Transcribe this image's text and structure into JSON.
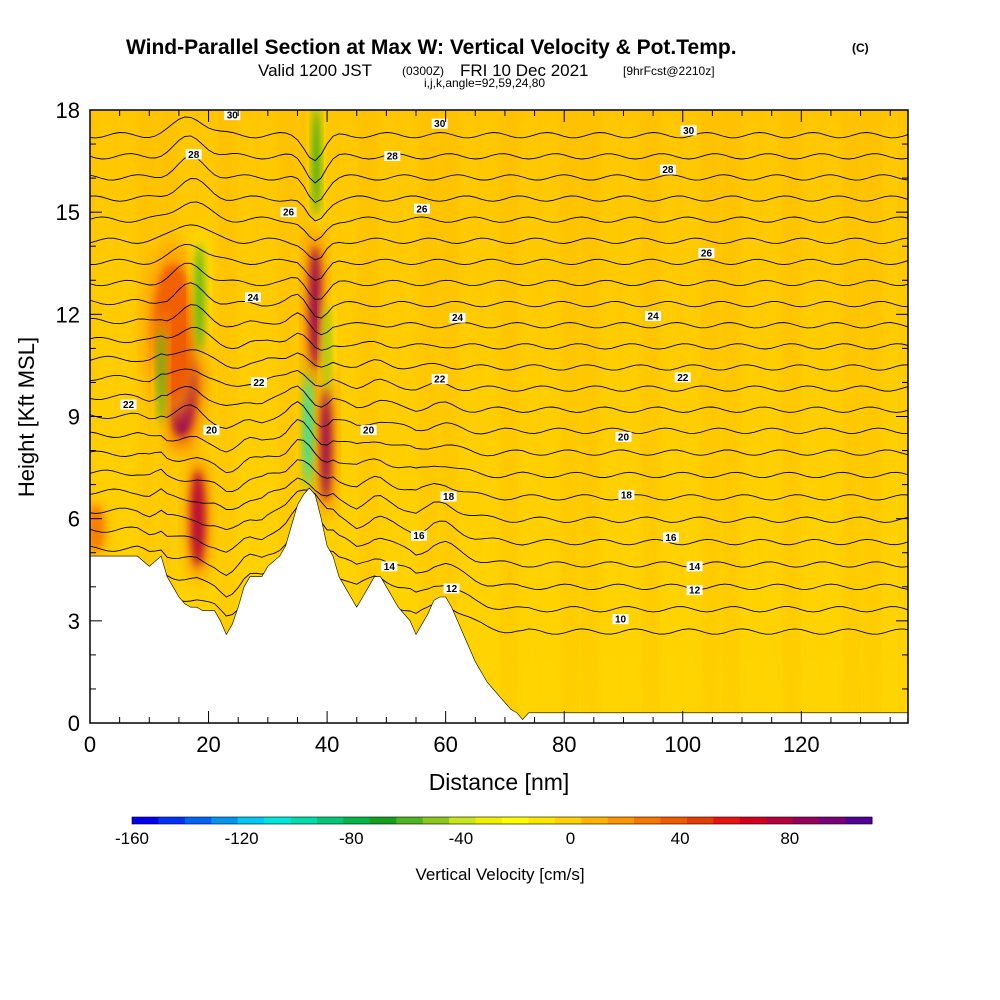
{
  "title": {
    "main": "Wind-Parallel Section at Max W: Vertical Velocity & Pot.Temp.",
    "copyright": "(C)",
    "valid_prefix": "Valid 1200 JST",
    "utc": "(0300Z)",
    "date": "FRI 10 Dec 2021",
    "forecast": "[9hrFcst@2210z]",
    "indices": "i,j,k,angle=92,59,24,80"
  },
  "chart_data": {
    "type": "heatmap",
    "xlabel": "Distance [nm]",
    "ylabel": "Height [Kft MSL]",
    "xlim": [
      0,
      138
    ],
    "ylim": [
      0,
      18
    ],
    "x_ticks": [
      "0",
      "20",
      "40",
      "60",
      "80",
      "100",
      "120"
    ],
    "x_tick_values": [
      0,
      20,
      40,
      60,
      80,
      100,
      120
    ],
    "y_ticks": [
      "0",
      "3",
      "6",
      "9",
      "12",
      "15",
      "18"
    ],
    "y_tick_values": [
      0,
      3,
      6,
      9,
      12,
      15,
      18
    ],
    "colorbar": {
      "label": "Vertical Velocity [cm/s]",
      "min": -160,
      "max": 110,
      "tick_labels": [
        "-160",
        "-120",
        "-80",
        "-40",
        "0",
        "40",
        "80"
      ],
      "tick_values": [
        -160,
        -120,
        -80,
        -40,
        0,
        40,
        80
      ],
      "colors": [
        "#0000ee",
        "#0032f5",
        "#0064f5",
        "#0096f0",
        "#00c8f0",
        "#00e6dc",
        "#00dcaa",
        "#00c878",
        "#00b446",
        "#14a01e",
        "#50b41e",
        "#8cc81e",
        "#c8e61e",
        "#f0f000",
        "#ffff00",
        "#ffe600",
        "#ffd200",
        "#ffb400",
        "#ff9600",
        "#f57800",
        "#f05a00",
        "#e63c00",
        "#e61414",
        "#d2001e",
        "#b4003c",
        "#96005a",
        "#780078",
        "#500096"
      ]
    },
    "terrain_kft": [
      [
        0,
        4.9
      ],
      [
        8,
        4.9
      ],
      [
        10,
        4.6
      ],
      [
        12,
        4.9
      ],
      [
        13,
        4.3
      ],
      [
        14,
        4.0
      ],
      [
        15,
        3.7
      ],
      [
        16,
        3.5
      ],
      [
        17,
        3.4
      ],
      [
        18,
        3.4
      ],
      [
        19,
        3.3
      ],
      [
        21,
        3.3
      ],
      [
        22,
        3.0
      ],
      [
        23,
        2.6
      ],
      [
        24,
        2.9
      ],
      [
        25,
        3.4
      ],
      [
        26,
        4.0
      ],
      [
        27,
        4.3
      ],
      [
        29,
        4.3
      ],
      [
        30,
        4.6
      ],
      [
        32,
        4.9
      ],
      [
        33,
        5.2
      ],
      [
        34,
        5.8
      ],
      [
        35,
        6.4
      ],
      [
        36,
        6.7
      ],
      [
        37,
        6.9
      ],
      [
        38,
        6.7
      ],
      [
        39,
        6.0
      ],
      [
        40,
        5.2
      ],
      [
        41,
        4.9
      ],
      [
        42,
        4.3
      ],
      [
        43,
        4.0
      ],
      [
        44,
        3.7
      ],
      [
        45,
        3.4
      ],
      [
        46,
        3.7
      ],
      [
        47,
        4.0
      ],
      [
        48,
        4.3
      ],
      [
        49,
        4.3
      ],
      [
        50,
        4.0
      ],
      [
        51,
        3.7
      ],
      [
        52,
        3.4
      ],
      [
        53,
        3.2
      ],
      [
        54,
        3.0
      ],
      [
        55,
        2.6
      ],
      [
        56,
        2.9
      ],
      [
        57,
        3.2
      ],
      [
        58,
        3.6
      ],
      [
        59,
        3.7
      ],
      [
        60,
        3.7
      ],
      [
        61,
        3.4
      ],
      [
        62,
        3.0
      ],
      [
        63,
        2.6
      ],
      [
        64,
        2.2
      ],
      [
        65,
        1.8
      ],
      [
        66,
        1.5
      ],
      [
        67,
        1.2
      ],
      [
        68,
        1.0
      ],
      [
        69,
        0.8
      ],
      [
        70,
        0.6
      ],
      [
        71,
        0.4
      ],
      [
        72,
        0.3
      ],
      [
        73,
        0.1
      ],
      [
        74,
        0.3
      ],
      [
        138,
        0.3
      ]
    ],
    "isotherm_levels": [
      "10",
      "12",
      "14",
      "16",
      "18",
      "20",
      "22",
      "24",
      "26",
      "28",
      "30"
    ],
    "contour_labels": [
      {
        "text": "30",
        "x": 24,
        "y": 17.85
      },
      {
        "text": "30",
        "x": 59,
        "y": 17.6
      },
      {
        "text": "30",
        "x": 101,
        "y": 17.4
      },
      {
        "text": "28",
        "x": 17.5,
        "y": 16.7
      },
      {
        "text": "28",
        "x": 51,
        "y": 16.65
      },
      {
        "text": "28",
        "x": 97.5,
        "y": 16.25
      },
      {
        "text": "26",
        "x": 33.5,
        "y": 15.0
      },
      {
        "text": "26",
        "x": 56,
        "y": 15.1
      },
      {
        "text": "26",
        "x": 104,
        "y": 13.8
      },
      {
        "text": "24",
        "x": 27.5,
        "y": 12.5
      },
      {
        "text": "24",
        "x": 62,
        "y": 11.9
      },
      {
        "text": "24",
        "x": 95,
        "y": 11.95
      },
      {
        "text": "22",
        "x": 6.5,
        "y": 9.35
      },
      {
        "text": "22",
        "x": 28.5,
        "y": 10.0
      },
      {
        "text": "22",
        "x": 59,
        "y": 10.1
      },
      {
        "text": "22",
        "x": 100,
        "y": 10.15
      },
      {
        "text": "20",
        "x": 20.5,
        "y": 8.6
      },
      {
        "text": "20",
        "x": 47,
        "y": 8.6
      },
      {
        "text": "20",
        "x": 90,
        "y": 8.4
      },
      {
        "text": "18",
        "x": 60.5,
        "y": 6.65
      },
      {
        "text": "18",
        "x": 90.5,
        "y": 6.7
      },
      {
        "text": "16",
        "x": 55.5,
        "y": 5.5
      },
      {
        "text": "16",
        "x": 98,
        "y": 5.45
      },
      {
        "text": "14",
        "x": 50.5,
        "y": 4.6
      },
      {
        "text": "14",
        "x": 102,
        "y": 4.6
      },
      {
        "text": "12",
        "x": 61,
        "y": 3.95
      },
      {
        "text": "12",
        "x": 102,
        "y": 3.9
      },
      {
        "text": "10",
        "x": 89.5,
        "y": 3.05
      }
    ],
    "updraft_features": [
      {
        "x": 15.5,
        "y": 10.0,
        "rx": 2.5,
        "ry": 1.6,
        "w": 90
      },
      {
        "x": 18.2,
        "y": 6.0,
        "rx": 1.2,
        "ry": 1.4,
        "w": 80
      },
      {
        "x": 38.0,
        "y": 12.2,
        "rx": 1.0,
        "ry": 1.8,
        "w": 85
      },
      {
        "x": 39.8,
        "y": 8.2,
        "rx": 0.9,
        "ry": 1.7,
        "w": 90
      },
      {
        "x": 14.0,
        "y": 11.5,
        "rx": 3.5,
        "ry": 2.0,
        "w": 40
      },
      {
        "x": 1.0,
        "y": 5.7,
        "rx": 1.5,
        "ry": 0.7,
        "w": 30
      }
    ],
    "downdraft_features": [
      {
        "x": 12.0,
        "y": 10.2,
        "rx": 0.6,
        "ry": 1.4,
        "w": -60
      },
      {
        "x": 18.5,
        "y": 12.5,
        "rx": 0.8,
        "ry": 1.6,
        "w": -55
      },
      {
        "x": 36.8,
        "y": 8.6,
        "rx": 0.6,
        "ry": 1.6,
        "w": -110
      },
      {
        "x": 38.2,
        "y": 16.5,
        "rx": 0.6,
        "ry": 1.6,
        "w": -70
      },
      {
        "x": 40.0,
        "y": 11.0,
        "rx": 0.6,
        "ry": 1.3,
        "w": -50
      }
    ]
  }
}
